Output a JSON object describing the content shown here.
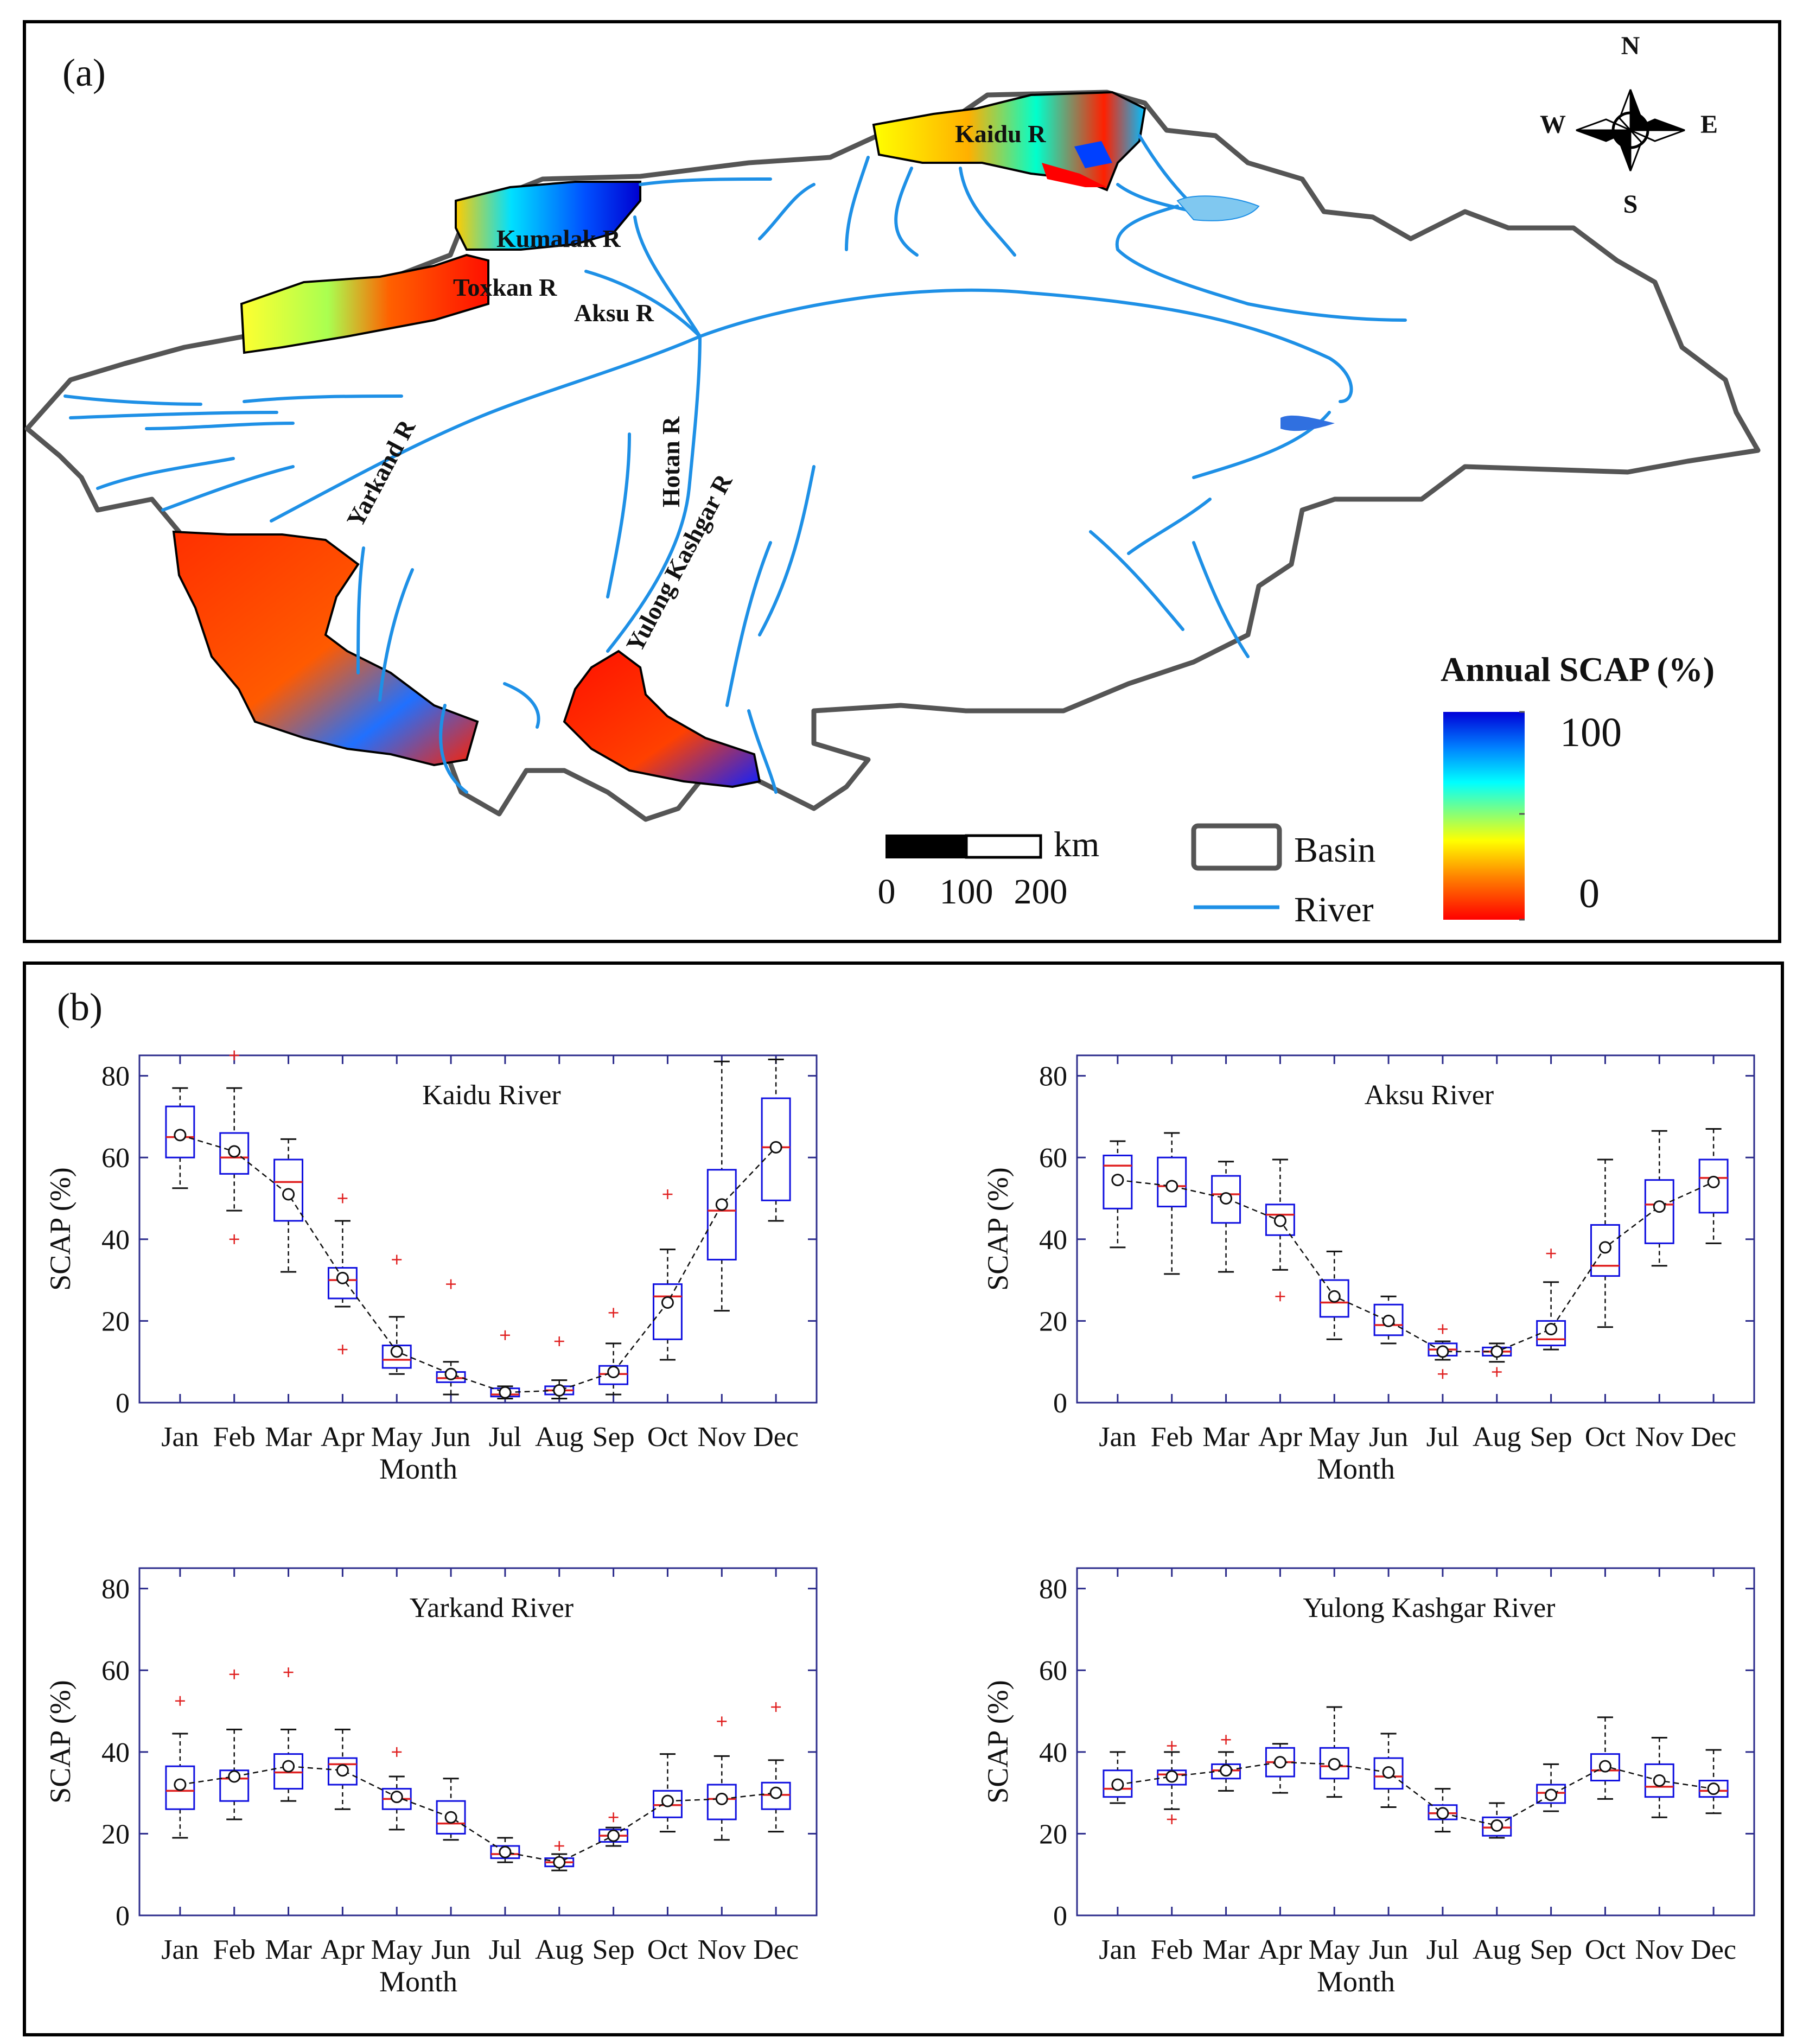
{
  "panel_a": {
    "label": "(a)",
    "compass": {
      "n": "N",
      "s": "S",
      "e": "E",
      "w": "W"
    },
    "rivers": [
      "Kaidu R",
      "Kumalak R",
      "Toxkan R",
      "Aksu R",
      "Yarkand R",
      "Hotan R",
      "Yulong Kashgar R"
    ],
    "legend": {
      "title": "Annual SCAP (%)",
      "max_label": "100",
      "min_label": "0",
      "basin_label": "Basin",
      "river_label": "River",
      "scale_unit": "km",
      "scale_ticks": [
        "0",
        "100",
        "200"
      ]
    },
    "colors": {
      "basin": "#555555",
      "river": "#1e90e6"
    }
  },
  "panel_b": {
    "label": "(b)",
    "chart_data": [
      {
        "type": "box",
        "title": "Kaidu River",
        "xlabel": "Month",
        "ylabel": "SCAP (%)",
        "ylim": [
          0,
          85
        ],
        "yticks": [
          "0",
          "20",
          "40",
          "60",
          "80"
        ],
        "categories": [
          "Jan",
          "Feb",
          "Mar",
          "Apr",
          "May",
          "Jun",
          "Jul",
          "Aug",
          "Sep",
          "Oct",
          "Nov",
          "Dec"
        ],
        "boxes": [
          {
            "wl": 52.5,
            "q1": 60,
            "med": 65,
            "q3": 72.5,
            "wh": 77,
            "mean": 65.5,
            "out": []
          },
          {
            "wl": 47,
            "q1": 56,
            "med": 60,
            "q3": 66,
            "wh": 77,
            "mean": 61.5,
            "out": [
              40,
              85
            ]
          },
          {
            "wl": 32,
            "q1": 44.5,
            "med": 54,
            "q3": 59.5,
            "wh": 64.5,
            "mean": 51,
            "out": []
          },
          {
            "wl": 23.5,
            "q1": 25.5,
            "med": 30,
            "q3": 33,
            "wh": 44.5,
            "mean": 30.5,
            "out": [
              13,
              50
            ]
          },
          {
            "wl": 7,
            "q1": 8.5,
            "med": 10.5,
            "q3": 14,
            "wh": 21,
            "mean": 12.5,
            "out": [
              35
            ]
          },
          {
            "wl": 2,
            "q1": 5,
            "med": 6,
            "q3": 7.5,
            "wh": 10,
            "mean": 7,
            "out": [
              29
            ]
          },
          {
            "wl": 1,
            "q1": 1.5,
            "med": 2,
            "q3": 3.5,
            "wh": 4,
            "mean": 2.5,
            "out": [
              16.5
            ]
          },
          {
            "wl": 1,
            "q1": 2,
            "med": 3,
            "q3": 4,
            "wh": 5.5,
            "mean": 3,
            "out": [
              15
            ]
          },
          {
            "wl": 2,
            "q1": 4.5,
            "med": 7,
            "q3": 9,
            "wh": 14.5,
            "mean": 7.5,
            "out": [
              22
            ]
          },
          {
            "wl": 10.5,
            "q1": 15.5,
            "med": 26,
            "q3": 29,
            "wh": 37.5,
            "mean": 24.5,
            "out": [
              51
            ]
          },
          {
            "wl": 22.5,
            "q1": 35,
            "med": 47,
            "q3": 57,
            "wh": 83.5,
            "mean": 48.5,
            "out": []
          },
          {
            "wl": 44.5,
            "q1": 49.5,
            "med": 62.5,
            "q3": 74.5,
            "wh": 84,
            "mean": 62.5,
            "out": []
          }
        ]
      },
      {
        "type": "box",
        "title": "Aksu River",
        "xlabel": "Month",
        "ylabel": "SCAP (%)",
        "ylim": [
          0,
          85
        ],
        "yticks": [
          "0",
          "20",
          "40",
          "60",
          "80"
        ],
        "categories": [
          "Jan",
          "Feb",
          "Mar",
          "Apr",
          "May",
          "Jun",
          "Jul",
          "Aug",
          "Sep",
          "Oct",
          "Nov",
          "Dec"
        ],
        "boxes": [
          {
            "wl": 38,
            "q1": 47.5,
            "med": 58,
            "q3": 60.5,
            "wh": 64,
            "mean": 54.5,
            "out": []
          },
          {
            "wl": 31.5,
            "q1": 48,
            "med": 53,
            "q3": 60,
            "wh": 66,
            "mean": 53,
            "out": []
          },
          {
            "wl": 32,
            "q1": 44,
            "med": 51,
            "q3": 55.5,
            "wh": 59,
            "mean": 50,
            "out": []
          },
          {
            "wl": 32.5,
            "q1": 41,
            "med": 46,
            "q3": 48.5,
            "wh": 59.5,
            "mean": 44.5,
            "out": [
              26
            ]
          },
          {
            "wl": 15.5,
            "q1": 21,
            "med": 24.5,
            "q3": 30,
            "wh": 37,
            "mean": 26,
            "out": []
          },
          {
            "wl": 14.5,
            "q1": 16.5,
            "med": 19,
            "q3": 24,
            "wh": 26,
            "mean": 20,
            "out": []
          },
          {
            "wl": 10.5,
            "q1": 11.5,
            "med": 13,
            "q3": 14.5,
            "wh": 15,
            "mean": 12.5,
            "out": [
              7,
              18
            ]
          },
          {
            "wl": 10,
            "q1": 11.5,
            "med": 12.5,
            "q3": 13.5,
            "wh": 14.5,
            "mean": 12.5,
            "out": [
              7.5
            ]
          },
          {
            "wl": 13,
            "q1": 14,
            "med": 15.5,
            "q3": 20,
            "wh": 29.5,
            "mean": 18,
            "out": [
              36.5
            ]
          },
          {
            "wl": 18.5,
            "q1": 31,
            "med": 33.5,
            "q3": 43.5,
            "wh": 59.5,
            "mean": 38,
            "out": []
          },
          {
            "wl": 33.5,
            "q1": 39,
            "med": 48.5,
            "q3": 54.5,
            "wh": 66.5,
            "mean": 48,
            "out": []
          },
          {
            "wl": 39,
            "q1": 46.5,
            "med": 55,
            "q3": 59.5,
            "wh": 67,
            "mean": 54,
            "out": []
          }
        ]
      },
      {
        "type": "box",
        "title": "Yarkand River",
        "xlabel": "Month",
        "ylabel": "SCAP (%)",
        "ylim": [
          0,
          85
        ],
        "yticks": [
          "0",
          "20",
          "40",
          "60",
          "80"
        ],
        "categories": [
          "Jan",
          "Feb",
          "Mar",
          "Apr",
          "May",
          "Jun",
          "Jul",
          "Aug",
          "Sep",
          "Oct",
          "Nov",
          "Dec"
        ],
        "boxes": [
          {
            "wl": 19,
            "q1": 26,
            "med": 30.5,
            "q3": 36.5,
            "wh": 44.5,
            "mean": 32,
            "out": [
              52.5
            ]
          },
          {
            "wl": 23.5,
            "q1": 28,
            "med": 33.5,
            "q3": 35.5,
            "wh": 45.5,
            "mean": 34,
            "out": [
              59
            ]
          },
          {
            "wl": 28,
            "q1": 31,
            "med": 35,
            "q3": 39.5,
            "wh": 45.5,
            "mean": 36.5,
            "out": [
              59.5
            ]
          },
          {
            "wl": 26,
            "q1": 32,
            "med": 37,
            "q3": 38.5,
            "wh": 45.5,
            "mean": 35.5,
            "out": []
          },
          {
            "wl": 21,
            "q1": 26,
            "med": 28.5,
            "q3": 31,
            "wh": 34,
            "mean": 29,
            "out": [
              40
            ]
          },
          {
            "wl": 18.5,
            "q1": 20,
            "med": 22.5,
            "q3": 28,
            "wh": 33.5,
            "mean": 24,
            "out": []
          },
          {
            "wl": 13,
            "q1": 14,
            "med": 15,
            "q3": 17,
            "wh": 19,
            "mean": 15.5,
            "out": []
          },
          {
            "wl": 11,
            "q1": 12,
            "med": 13,
            "q3": 14,
            "wh": 15,
            "mean": 13,
            "out": [
              17
            ]
          },
          {
            "wl": 17,
            "q1": 18,
            "med": 19.5,
            "q3": 21,
            "wh": 21.5,
            "mean": 19.5,
            "out": [
              24
            ]
          },
          {
            "wl": 20.5,
            "q1": 24,
            "med": 27,
            "q3": 30.5,
            "wh": 39.5,
            "mean": 28,
            "out": []
          },
          {
            "wl": 18.5,
            "q1": 23.5,
            "med": 28.5,
            "q3": 32,
            "wh": 39,
            "mean": 28.5,
            "out": [
              47.5
            ]
          },
          {
            "wl": 20.5,
            "q1": 26,
            "med": 29.5,
            "q3": 32.5,
            "wh": 38,
            "mean": 30,
            "out": [
              51
            ]
          }
        ]
      },
      {
        "type": "box",
        "title": "Yulong Kashgar River",
        "xlabel": "Month",
        "ylabel": "SCAP (%)",
        "ylim": [
          0,
          85
        ],
        "yticks": [
          "0",
          "20",
          "40",
          "60",
          "80"
        ],
        "categories": [
          "Jan",
          "Feb",
          "Mar",
          "Apr",
          "May",
          "Jun",
          "Jul",
          "Aug",
          "Sep",
          "Oct",
          "Nov",
          "Dec"
        ],
        "boxes": [
          {
            "wl": 27.5,
            "q1": 29,
            "med": 31,
            "q3": 35.5,
            "wh": 40,
            "mean": 32,
            "out": []
          },
          {
            "wl": 26,
            "q1": 32,
            "med": 34.5,
            "q3": 35.5,
            "wh": 40,
            "mean": 34,
            "out": [
              23.5,
              41.5
            ]
          },
          {
            "wl": 30.5,
            "q1": 33.5,
            "med": 35.5,
            "q3": 37,
            "wh": 40,
            "mean": 35.5,
            "out": [
              43
            ]
          },
          {
            "wl": 30,
            "q1": 34,
            "med": 37.5,
            "q3": 41,
            "wh": 42,
            "mean": 37.5,
            "out": []
          },
          {
            "wl": 29,
            "q1": 33.5,
            "med": 36.5,
            "q3": 41,
            "wh": 51,
            "mean": 37,
            "out": []
          },
          {
            "wl": 26.5,
            "q1": 31,
            "med": 34,
            "q3": 38.5,
            "wh": 44.5,
            "mean": 35,
            "out": []
          },
          {
            "wl": 20.5,
            "q1": 23.5,
            "med": 25,
            "q3": 27,
            "wh": 31,
            "mean": 25,
            "out": []
          },
          {
            "wl": 19,
            "q1": 19.5,
            "med": 21.5,
            "q3": 24,
            "wh": 27.5,
            "mean": 22,
            "out": []
          },
          {
            "wl": 25.5,
            "q1": 27.5,
            "med": 30,
            "q3": 32,
            "wh": 37,
            "mean": 29.5,
            "out": []
          },
          {
            "wl": 28.5,
            "q1": 33,
            "med": 35.5,
            "q3": 39.5,
            "wh": 48.5,
            "mean": 36.5,
            "out": []
          },
          {
            "wl": 24,
            "q1": 29,
            "med": 31.5,
            "q3": 37,
            "wh": 43.5,
            "mean": 33,
            "out": []
          },
          {
            "wl": 25,
            "q1": 29,
            "med": 30.5,
            "q3": 33,
            "wh": 40.5,
            "mean": 31,
            "out": []
          }
        ]
      }
    ]
  }
}
